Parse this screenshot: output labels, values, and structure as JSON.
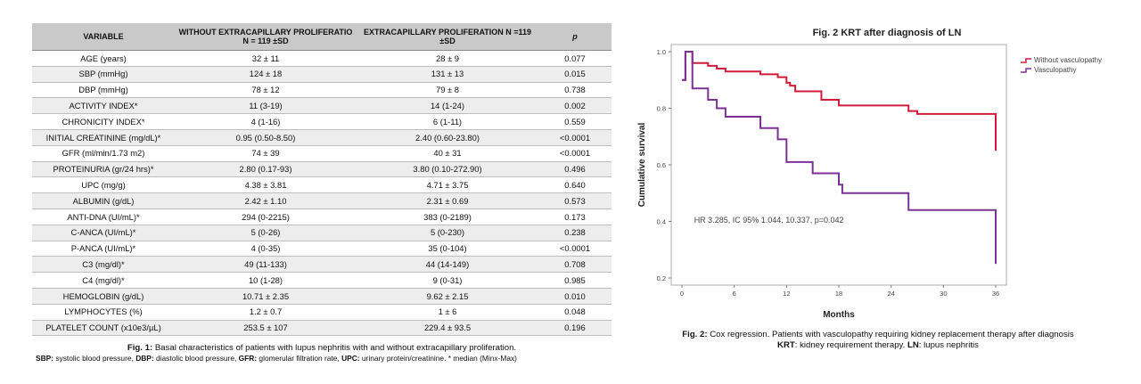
{
  "table": {
    "headers": [
      "VARIABLE",
      "WITHOUT EXTRACAPILLARY PROLIFERATIO N = 119 ±SD",
      "EXTRACAPILLARY PROLIFERATION N =119 ±SD",
      "p"
    ],
    "rows": [
      [
        "AGE (years)",
        "32 ± 11",
        "28 ± 9",
        "0.077"
      ],
      [
        "SBP (mmHg)",
        "124 ± 18",
        "131 ± 13",
        "0.015"
      ],
      [
        "DBP (mmHg)",
        "78 ± 12",
        "79 ± 8",
        "0.738"
      ],
      [
        "ACTIVITY INDEX*",
        "11 (3-19)",
        "14 (1-24)",
        "0.002"
      ],
      [
        "CHRONICITY INDEX*",
        "4 (1-16)",
        "6 (1-11)",
        "0.559"
      ],
      [
        "INITIAL CREATININE (mg/dL)*",
        "0.95 (0.50-8.50)",
        "2.40 (0.60-23.80)",
        "<0.0001"
      ],
      [
        "GFR (ml/min/1.73 m2)",
        "74 ± 39",
        "40 ± 31",
        "<0.0001"
      ],
      [
        "PROTEINURIA (gr/24 hrs)*",
        "2.80 (0.17-93)",
        "3.80 (0.10-272.90)",
        "0.496"
      ],
      [
        "UPC (mg/g)",
        "4.38 ± 3.81",
        "4.71 ± 3.75",
        "0.640"
      ],
      [
        "ALBUMIN (g/dL)",
        "2.42 ± 1.10",
        "2.31 ± 0.69",
        "0.573"
      ],
      [
        "ANTI-DNA (UI/mL)*",
        "294 (0-2215)",
        "383 (0-2189)",
        "0.173"
      ],
      [
        "C-ANCA (UI/mL)*",
        "5 (0-26)",
        "5 (0-230)",
        "0.238"
      ],
      [
        "P-ANCA (UI/mL)*",
        "4 (0-35)",
        "35 (0-104)",
        "<0.0001"
      ],
      [
        "C3 (mg/dl)*",
        "49 (11-133)",
        "44 (14-149)",
        "0.708"
      ],
      [
        "C4 (mg/dl)*",
        "10 (1-28)",
        "9 (0-31)",
        "0.985"
      ],
      [
        "HEMOGLOBIN (g/dL)",
        "10.71 ± 2.35",
        "9.62 ± 2.15",
        "0.010"
      ],
      [
        "LYMPHOCYTES (%)",
        "1.2 ± 0.7",
        "1 ± 6",
        "0.048"
      ],
      [
        "PLATELET COUNT (x10e3/µL)",
        "253.5 ± 107",
        "229.4 ± 93.5",
        "0.196"
      ]
    ]
  },
  "caption1": {
    "label": "Fig. 1:",
    "text": " Basal characteristics of patients with lupus nephritis with and without extracapillary proliferation.",
    "notes": [
      {
        "abbr": "SBP:",
        "def": " systolic blood pressure, "
      },
      {
        "abbr": "DBP:",
        "def": " diastolic blood pressure, "
      },
      {
        "abbr": "GFR:",
        "def": " glomerular filtration rate, "
      },
      {
        "abbr": "UPC:",
        "def": " urinary protein/creatinine. * median (Minx-Max)"
      }
    ]
  },
  "chart_data": {
    "type": "line",
    "title": "Fig. 2 KRT after diagnosis of LN",
    "xlabel": "Months",
    "ylabel": "Cumulative survival",
    "xlim": [
      0,
      36
    ],
    "ylim": [
      0.2,
      1.0
    ],
    "xticks": [
      0,
      6,
      12,
      18,
      24,
      30,
      36
    ],
    "yticks": [
      0.2,
      0.4,
      0.6,
      0.8,
      1.0
    ],
    "legend_position": "top-right",
    "annotation": "HR 3.285, IC 95% 1.044, 10.337, p=0.042",
    "series": [
      {
        "name": "Without vasculopathy",
        "color": "#d01c3a",
        "steps": [
          [
            0,
            0.9
          ],
          [
            0.4,
            1.0
          ],
          [
            1.2,
            0.96
          ],
          [
            3,
            0.95
          ],
          [
            4,
            0.94
          ],
          [
            5,
            0.93
          ],
          [
            9,
            0.92
          ],
          [
            11,
            0.91
          ],
          [
            12,
            0.89
          ],
          [
            12.4,
            0.88
          ],
          [
            13,
            0.86
          ],
          [
            16,
            0.83
          ],
          [
            18,
            0.81
          ],
          [
            26,
            0.79
          ],
          [
            27,
            0.78
          ],
          [
            36,
            0.76
          ],
          [
            36,
            0.65
          ]
        ]
      },
      {
        "name": "Vasculopathy",
        "color": "#7b3294",
        "steps": [
          [
            0,
            0.9
          ],
          [
            0.4,
            1.0
          ],
          [
            1.2,
            0.87
          ],
          [
            3,
            0.83
          ],
          [
            4,
            0.8
          ],
          [
            5,
            0.77
          ],
          [
            9,
            0.73
          ],
          [
            11,
            0.69
          ],
          [
            12,
            0.61
          ],
          [
            15,
            0.57
          ],
          [
            18,
            0.53
          ],
          [
            18.4,
            0.5
          ],
          [
            26,
            0.44
          ],
          [
            36,
            0.43
          ],
          [
            36,
            0.25
          ]
        ]
      }
    ]
  },
  "caption2": {
    "label": "Fig. 2:",
    "text": " Cox regression. Patients with vasculopathy requiring kidney replacement therapy after diagnosis",
    "line2_abbr1": "KRT",
    "line2_def1": ": kidney requirement therapy. ",
    "line2_abbr2": "LN",
    "line2_def2": ": lupus nephritis"
  }
}
